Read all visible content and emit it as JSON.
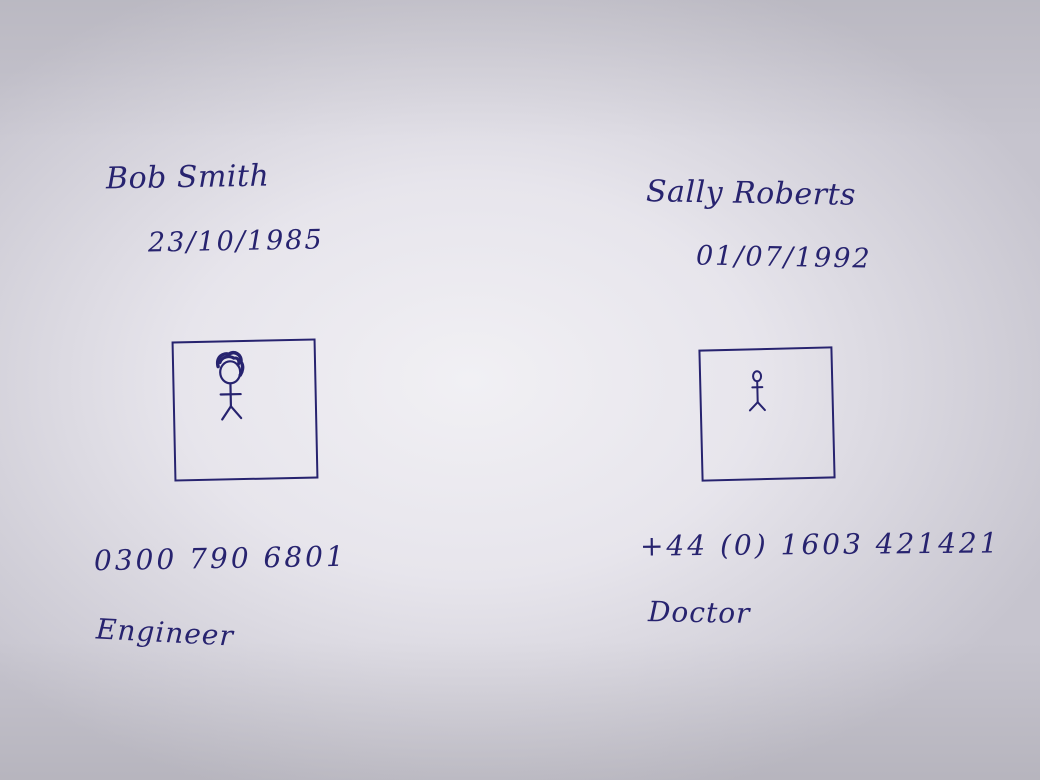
{
  "contacts": [
    {
      "name": "Bob Smith",
      "dob": "23/10/1985",
      "phone": "0300  790  6801",
      "occupation": "Engineer",
      "photo_icon": "stick-figure-with-hair-icon"
    },
    {
      "name": "Sally  Roberts",
      "dob": "01/07/1992",
      "phone": "+44  (0)  1603  421421",
      "occupation": "Doctor",
      "photo_icon": "stick-figure-icon"
    }
  ],
  "colors": {
    "ink": "#27236f",
    "paper": "#e7e5ec"
  }
}
